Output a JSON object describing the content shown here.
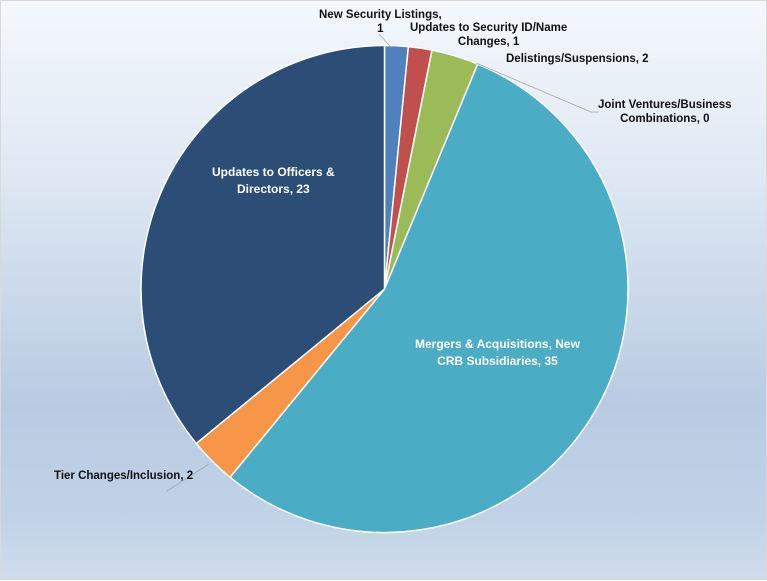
{
  "chart_data": {
    "type": "pie",
    "title": "",
    "start_angle_deg": 0,
    "direction": "clockwise",
    "total": 64,
    "categories": [
      "New Security Listings",
      "Updates to Security ID/Name Changes",
      "Delistings/Suspensions",
      "Joint Ventures/Business Combinations",
      "Mergers & Acquisitions, New CRB Subsidiaries",
      "Tier Changes/Inclusion",
      "Updates to Officers & Directors"
    ],
    "values": [
      1,
      1,
      2,
      0,
      35,
      2,
      23
    ],
    "colors": [
      "#4f81bd",
      "#c0504d",
      "#9bbb59",
      "#8064a2",
      "#4bacc6",
      "#f79646",
      "#2c4d75"
    ],
    "legend": "none",
    "data_labels": "category, value"
  },
  "labels": {
    "new_security_line1": "New Security Listings,",
    "new_security_line2": "1",
    "updates_security_line1": "Updates to Security ID/Name",
    "updates_security_line2": "Changes, 1",
    "delistings": "Delistings/Suspensions, 2",
    "joint_ventures_line1": "Joint Ventures/Business",
    "joint_ventures_line2": "Combinations, 0",
    "mergers_line1": "Mergers & Acquisitions, New",
    "mergers_line2": "CRB Subsidiaries, 35",
    "tier_changes": "Tier Changes/Inclusion, 2",
    "officers_line1": "Updates to Officers &",
    "officers_line2": "Directors, 23"
  }
}
